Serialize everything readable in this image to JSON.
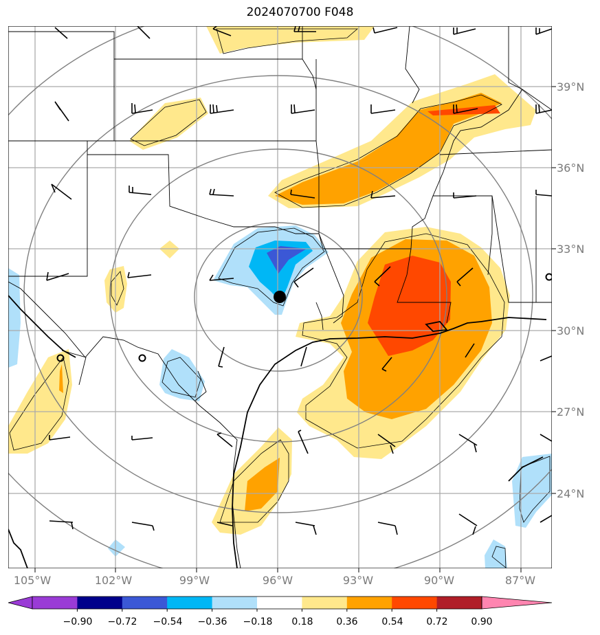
{
  "title": "2024070700 F048",
  "map": {
    "lon_labels": [
      "105°W",
      "102°W",
      "99°W",
      "96°W",
      "93°W",
      "90°W",
      "87°W"
    ],
    "lat_labels": [
      "39°N",
      "36°N",
      "33°N",
      "30°N",
      "27°N",
      "24°N"
    ],
    "lon_range": [
      -106,
      -86
    ],
    "lat_range": [
      21.3,
      41.3
    ],
    "center": {
      "lon": -96.0,
      "lat": 31.2
    }
  },
  "colorbar": {
    "ticks": [
      "−0.90",
      "−0.72",
      "−0.54",
      "−0.36",
      "−0.18",
      "0.18",
      "0.36",
      "0.54",
      "0.72",
      "0.90"
    ],
    "colors": [
      "#9a3bd6",
      "#00008b",
      "#3b58d6",
      "#00b7f5",
      "#b0e0fa",
      "#ffffff",
      "#ffe88c",
      "#ffa200",
      "#ff4800",
      "#b01e28",
      "#ff85b0"
    ]
  },
  "legend_colors": {
    "light_blue": "#b0e0fa",
    "cyan": "#00b7f5",
    "blue": "#3b58d6",
    "yellow": "#ffe88c",
    "orange": "#ffa200",
    "red": "#ff4800"
  }
}
